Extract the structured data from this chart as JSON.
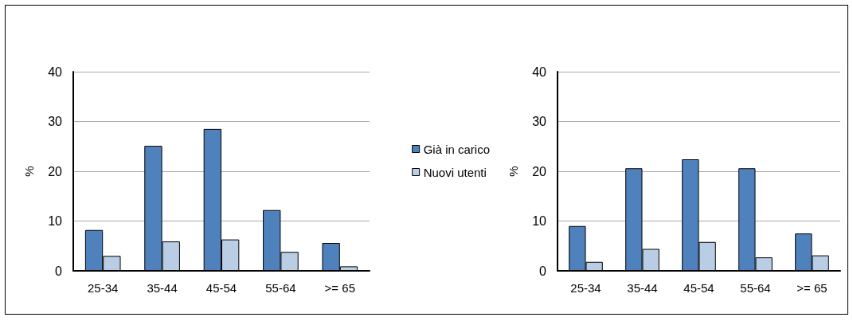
{
  "chart_data": [
    {
      "type": "bar",
      "ylabel": "%",
      "categories": [
        "25-34",
        "35-44",
        "45-54",
        "55-64",
        ">= 65"
      ],
      "ylim": [
        0,
        40
      ],
      "yticks": [
        0,
        10,
        20,
        30,
        40
      ],
      "grid": "y",
      "legend": "right",
      "series": [
        {
          "name": "Già in carico",
          "color": "#4f81bd",
          "values": [
            8.2,
            25.1,
            28.5,
            12.2,
            5.6
          ]
        },
        {
          "name": "Nuovi utenti",
          "color": "#b9cde5",
          "values": [
            3.0,
            5.9,
            6.3,
            3.8,
            0.9
          ]
        }
      ]
    },
    {
      "type": "bar",
      "ylabel": "%",
      "categories": [
        "25-34",
        "35-44",
        "45-54",
        "55-64",
        ">= 65"
      ],
      "ylim": [
        0,
        40
      ],
      "yticks": [
        0,
        10,
        20,
        30,
        40
      ],
      "grid": "y",
      "legend": false,
      "series": [
        {
          "color": "#4f81bd",
          "values": [
            9.0,
            20.6,
            22.4,
            20.6,
            7.5
          ]
        },
        {
          "color": "#b9cde5",
          "values": [
            1.8,
            4.4,
            5.8,
            2.7,
            3.1
          ]
        }
      ]
    }
  ]
}
